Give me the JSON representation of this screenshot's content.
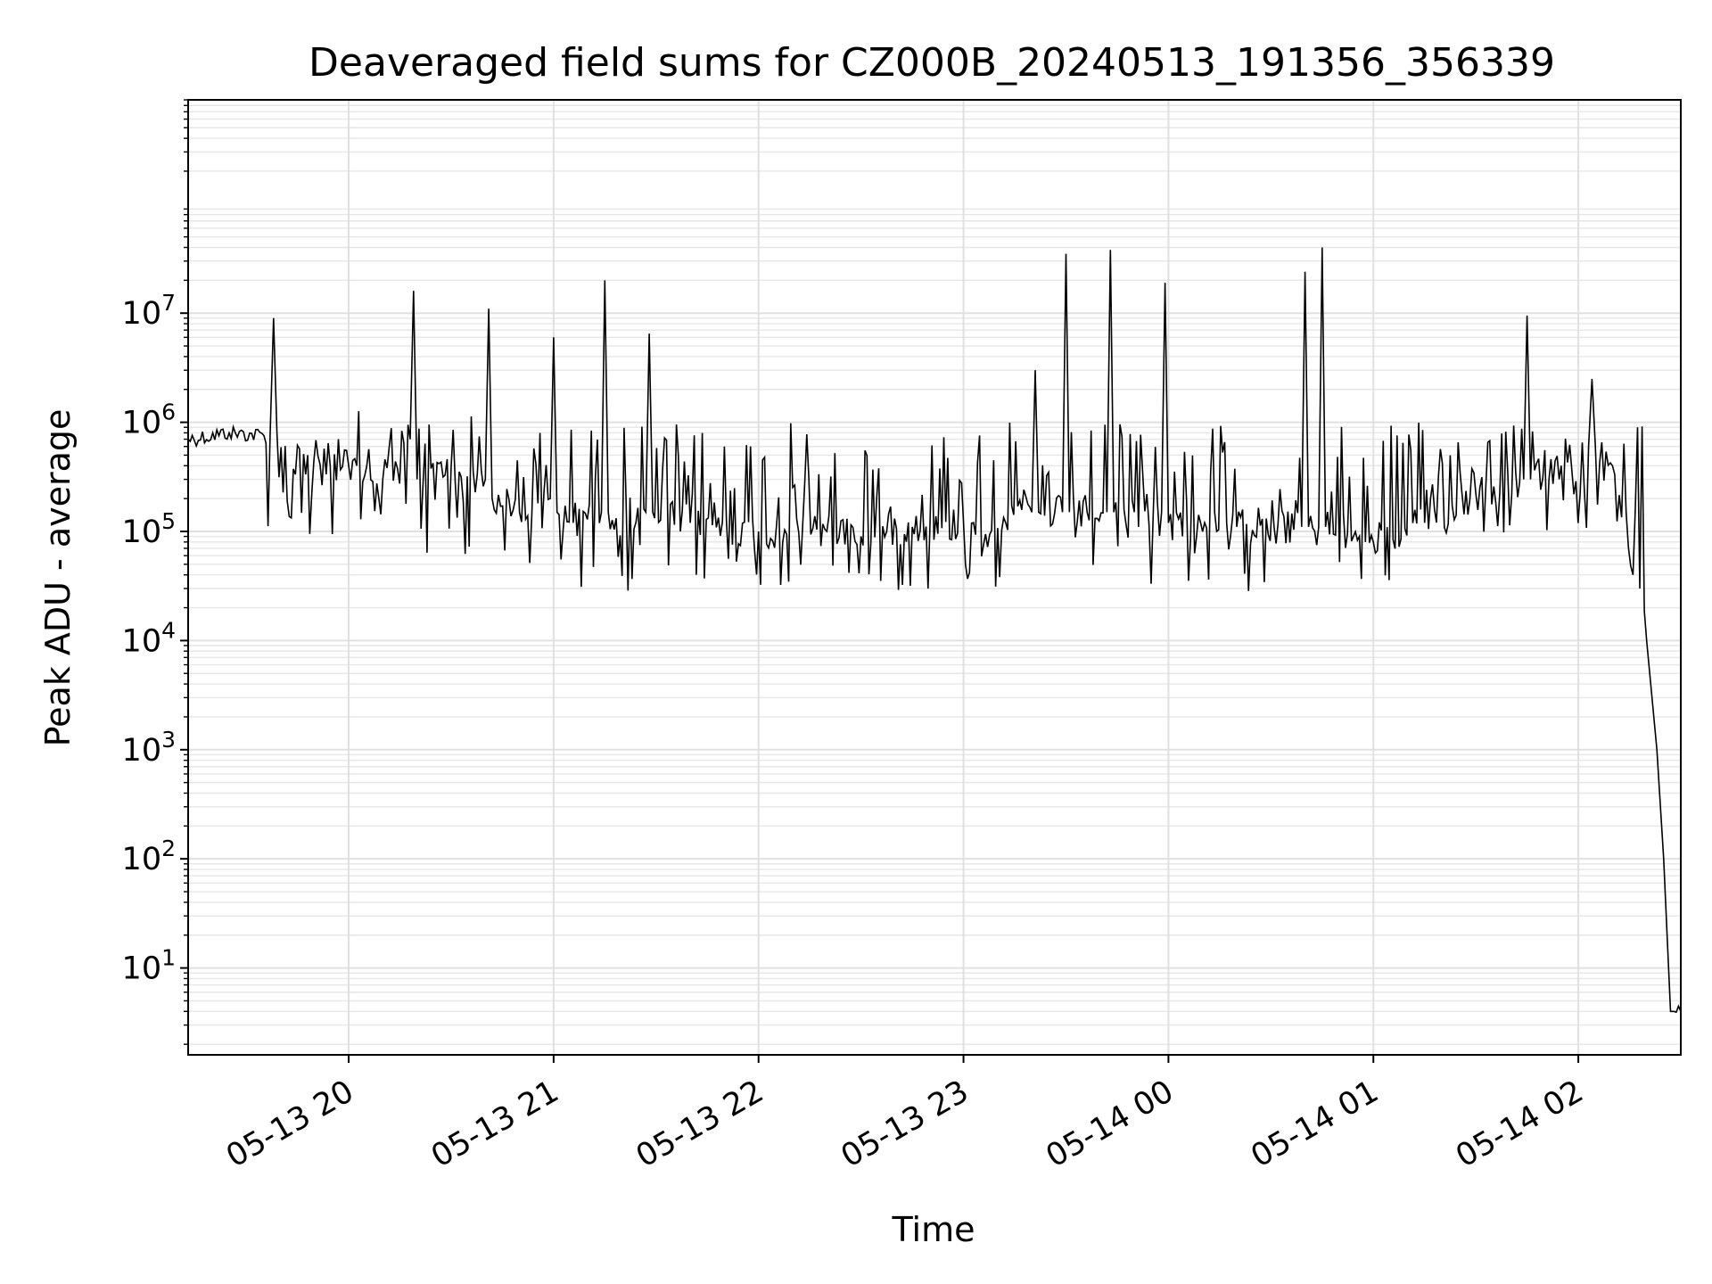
{
  "chart_data": {
    "type": "line",
    "title": "Deaveraged field sums for CZ000B_20240513_191356_356339",
    "xlabel": "Time",
    "ylabel": "Peak ADU - average",
    "yscale": "log",
    "ylim": [
      1.6,
      900000000
    ],
    "xlim": [
      "2024-05-13 19:13",
      "2024-05-14 02:30"
    ],
    "x_ticks": [
      {
        "value": "2024-05-13 20:00",
        "label": "05-13 20"
      },
      {
        "value": "2024-05-13 21:00",
        "label": "05-13 21"
      },
      {
        "value": "2024-05-13 22:00",
        "label": "05-13 22"
      },
      {
        "value": "2024-05-13 23:00",
        "label": "05-13 23"
      },
      {
        "value": "2024-05-14 00:00",
        "label": "05-14 00"
      },
      {
        "value": "2024-05-14 01:00",
        "label": "05-14 01"
      },
      {
        "value": "2024-05-14 02:00",
        "label": "05-14 02"
      }
    ],
    "y_ticks": [
      {
        "value": 10,
        "base": "10",
        "exp": "1"
      },
      {
        "value": 100,
        "base": "10",
        "exp": "2"
      },
      {
        "value": 1000,
        "base": "10",
        "exp": "3"
      },
      {
        "value": 10000,
        "base": "10",
        "exp": "4"
      },
      {
        "value": 100000,
        "base": "10",
        "exp": "5"
      },
      {
        "value": 1000000,
        "base": "10",
        "exp": "6"
      },
      {
        "value": 10000000,
        "base": "10",
        "exp": "7"
      }
    ],
    "grid": true,
    "series_color": "#000000",
    "series": [
      {
        "x": [
          "2024-05-13 19:13",
          "2024-05-13 19:25",
          "2024-05-13 19:37",
          "2024-05-13 19:38",
          "2024-05-13 19:39",
          "2024-05-13 19:48",
          "2024-05-13 20:00",
          "2024-05-13 20:10",
          "2024-05-13 20:18",
          "2024-05-13 20:19",
          "2024-05-13 20:20",
          "2024-05-13 20:30",
          "2024-05-13 20:40",
          "2024-05-13 20:41",
          "2024-05-13 20:42",
          "2024-05-13 20:50",
          "2024-05-13 20:59",
          "2024-05-13 21:00",
          "2024-05-13 21:01",
          "2024-05-13 21:14",
          "2024-05-13 21:15",
          "2024-05-13 21:16",
          "2024-05-13 21:27",
          "2024-05-13 21:28",
          "2024-05-13 21:29",
          "2024-05-13 21:40",
          "2024-05-13 22:00",
          "2024-05-13 22:20",
          "2024-05-13 22:30",
          "2024-05-13 22:45",
          "2024-05-13 23:00",
          "2024-05-13 23:20",
          "2024-05-13 23:21",
          "2024-05-13 23:22",
          "2024-05-13 23:29",
          "2024-05-13 23:30",
          "2024-05-13 23:31",
          "2024-05-13 23:42",
          "2024-05-13 23:43",
          "2024-05-13 23:44",
          "2024-05-13 23:50",
          "2024-05-13 23:58",
          "2024-05-13 23:59",
          "2024-05-14 00:00",
          "2024-05-14 00:20",
          "2024-05-14 00:39",
          "2024-05-14 00:40",
          "2024-05-14 00:41",
          "2024-05-14 00:44",
          "2024-05-14 00:45",
          "2024-05-14 00:46",
          "2024-05-14 01:00",
          "2024-05-14 01:15",
          "2024-05-14 01:30",
          "2024-05-14 01:44",
          "2024-05-14 01:45",
          "2024-05-14 01:46",
          "2024-05-14 01:55",
          "2024-05-14 02:03",
          "2024-05-14 02:04",
          "2024-05-14 02:05",
          "2024-05-14 02:10",
          "2024-05-14 02:14",
          "2024-05-14 02:16",
          "2024-05-14 02:18",
          "2024-05-14 02:20",
          "2024-05-14 02:23",
          "2024-05-14 02:25",
          "2024-05-14 02:27",
          "2024-05-14 02:28",
          "2024-05-14 02:30"
        ],
        "y": [
          700000,
          800000,
          750000,
          9000000,
          800000,
          500000,
          400000,
          300000,
          700000,
          16000000,
          300000,
          400000,
          300000,
          11000000,
          200000,
          150000,
          200000,
          6000000,
          150000,
          150000,
          20000000,
          150000,
          150000,
          6500000,
          150000,
          120000,
          100000,
          100000,
          90000,
          110000,
          120000,
          150000,
          3000000,
          150000,
          150000,
          35000000,
          150000,
          150000,
          38000000,
          150000,
          150000,
          150000,
          19000000,
          120000,
          110000,
          110000,
          24000000,
          110000,
          110000,
          40000000,
          110000,
          80000,
          120000,
          220000,
          300000,
          9500000,
          300000,
          400000,
          600000,
          2500000,
          600000,
          400000,
          150000,
          40000,
          30000,
          10000,
          1000,
          100,
          4,
          4,
          4
        ]
      }
    ]
  }
}
